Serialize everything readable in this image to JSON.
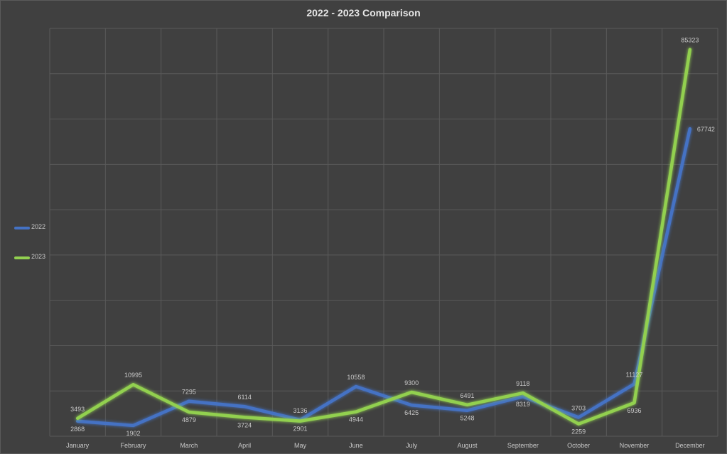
{
  "chart_data": {
    "type": "line",
    "title": "2022 - 2023 Comparison",
    "xlabel": "",
    "ylabel": "",
    "categories": [
      "January",
      "February",
      "March",
      "April",
      "May",
      "June",
      "July",
      "August",
      "September",
      "October",
      "November",
      "December"
    ],
    "ylim": [
      0,
      90000
    ],
    "grid": true,
    "legend_position": "left",
    "series": [
      {
        "name": "2022",
        "color": "#4472c4",
        "values": [
          2868,
          1902,
          7295,
          6114,
          3136,
          10558,
          6425,
          5248,
          8319,
          3703,
          11127,
          67742
        ]
      },
      {
        "name": "2023",
        "color": "#92d050",
        "values": [
          3493,
          10995,
          4879,
          3724,
          2901,
          4944,
          9300,
          6491,
          9118,
          2259,
          6936,
          85323
        ]
      }
    ]
  }
}
